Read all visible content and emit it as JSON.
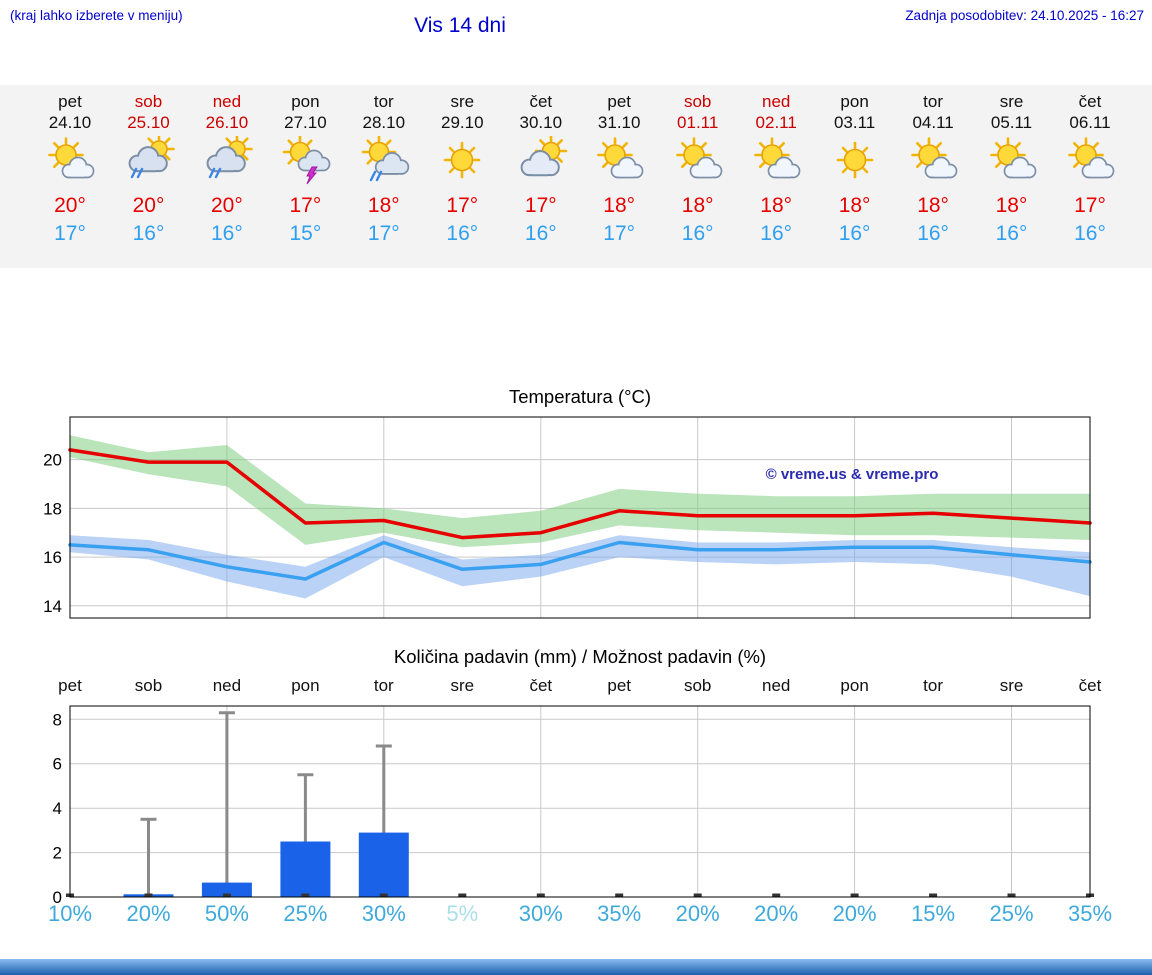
{
  "header": {
    "note": "(kraj lahko izberete v meniju)",
    "title": "Vis 14 dni",
    "updated": "Zadnja posodobitev: 24.10.2025 - 16:27"
  },
  "colors": {
    "link_blue": "#0000cc",
    "high_temp_red": "#e60000",
    "low_temp_blue": "#2f9ff0",
    "weekend_red": "#cc0000",
    "bar_blue": "#1a63e8",
    "whisker_gray": "#8a8a8a",
    "percent_blue": "#3fa9dc",
    "percent_muted": "#aadfe8",
    "watermark_blue": "#2b2bb0"
  },
  "forecast": {
    "days": [
      {
        "name": "pet",
        "date": "24.10",
        "weekend": false,
        "icon": "sun-cloud",
        "high": "20°",
        "low": "17°"
      },
      {
        "name": "sob",
        "date": "25.10",
        "weekend": true,
        "icon": "cloud-sun-rain",
        "high": "20°",
        "low": "16°"
      },
      {
        "name": "ned",
        "date": "26.10",
        "weekend": true,
        "icon": "cloud-sun-rain",
        "high": "20°",
        "low": "16°"
      },
      {
        "name": "pon",
        "date": "27.10",
        "weekend": false,
        "icon": "sun-cloud-storm",
        "high": "17°",
        "low": "15°"
      },
      {
        "name": "tor",
        "date": "28.10",
        "weekend": false,
        "icon": "sun-cloud-rain",
        "high": "18°",
        "low": "17°"
      },
      {
        "name": "sre",
        "date": "29.10",
        "weekend": false,
        "icon": "sun",
        "high": "17°",
        "low": "16°"
      },
      {
        "name": "čet",
        "date": "30.10",
        "weekend": false,
        "icon": "cloud-sun",
        "high": "17°",
        "low": "16°"
      },
      {
        "name": "pet",
        "date": "31.10",
        "weekend": false,
        "icon": "sun-cloud",
        "high": "18°",
        "low": "17°"
      },
      {
        "name": "sob",
        "date": "01.11",
        "weekend": true,
        "icon": "sun-cloud",
        "high": "18°",
        "low": "16°"
      },
      {
        "name": "ned",
        "date": "02.11",
        "weekend": true,
        "icon": "sun-cloud",
        "high": "18°",
        "low": "16°"
      },
      {
        "name": "pon",
        "date": "03.11",
        "weekend": false,
        "icon": "sun",
        "high": "18°",
        "low": "16°"
      },
      {
        "name": "tor",
        "date": "04.11",
        "weekend": false,
        "icon": "sun-cloud",
        "high": "18°",
        "low": "16°"
      },
      {
        "name": "sre",
        "date": "05.11",
        "weekend": false,
        "icon": "sun-cloud",
        "high": "18°",
        "low": "16°"
      },
      {
        "name": "čet",
        "date": "06.11",
        "weekend": false,
        "icon": "sun-cloud",
        "high": "17°",
        "low": "16°"
      }
    ]
  },
  "chart_data": [
    {
      "type": "line",
      "title": "Temperatura (°C)",
      "x_count": 14,
      "ylim": [
        13.5,
        21.75
      ],
      "yticks": [
        14,
        16,
        18,
        20
      ],
      "grid": true,
      "watermark": "© vreme.us & vreme.pro",
      "series": [
        {
          "name": "max-temp",
          "color": "#e60000",
          "values": [
            20.4,
            19.9,
            19.9,
            17.4,
            17.5,
            16.8,
            17.0,
            17.9,
            17.7,
            17.7,
            17.7,
            17.8,
            17.6,
            17.4
          ],
          "band": {
            "color": "rgba(130,205,130,0.55)",
            "upper": [
              21.0,
              20.3,
              20.6,
              18.2,
              18.0,
              17.6,
              17.9,
              18.8,
              18.6,
              18.5,
              18.5,
              18.6,
              18.6,
              18.6
            ],
            "lower": [
              20.1,
              19.4,
              18.9,
              16.5,
              17.0,
              16.4,
              16.6,
              17.3,
              17.1,
              17.0,
              16.9,
              16.9,
              16.8,
              16.7
            ]
          }
        },
        {
          "name": "min-temp",
          "color": "#3aa0f0",
          "values": [
            16.5,
            16.3,
            15.6,
            15.1,
            16.6,
            15.5,
            15.7,
            16.6,
            16.3,
            16.3,
            16.4,
            16.4,
            16.1,
            15.8
          ],
          "band": {
            "color": "rgba(120,165,240,0.5)",
            "upper": [
              16.9,
              16.7,
              16.1,
              15.6,
              16.9,
              15.9,
              16.1,
              16.9,
              16.6,
              16.6,
              16.7,
              16.7,
              16.4,
              16.2
            ],
            "lower": [
              16.2,
              15.9,
              15.0,
              14.3,
              16.0,
              14.8,
              15.2,
              16.0,
              15.8,
              15.7,
              15.8,
              15.7,
              15.2,
              14.4
            ]
          }
        }
      ]
    },
    {
      "type": "bar",
      "title": "Količina padavin (mm) / Možnost padavin (%)",
      "categories": [
        "pet",
        "sob",
        "ned",
        "pon",
        "tor",
        "sre",
        "čet",
        "pet",
        "sob",
        "ned",
        "pon",
        "tor",
        "sre",
        "čet"
      ],
      "values": [
        0,
        0.12,
        0.65,
        2.5,
        2.9,
        0,
        0,
        0,
        0,
        0,
        0,
        0,
        0,
        0
      ],
      "whiskers": [
        0,
        3.5,
        8.3,
        5.5,
        6.8,
        0,
        0,
        0,
        0,
        0,
        0,
        0,
        0,
        0
      ],
      "probabilities": [
        {
          "label": "10%"
        },
        {
          "label": "20%"
        },
        {
          "label": "50%"
        },
        {
          "label": "25%"
        },
        {
          "label": "30%"
        },
        {
          "label": "5%",
          "muted": true
        },
        {
          "label": "30%"
        },
        {
          "label": "35%"
        },
        {
          "label": "20%"
        },
        {
          "label": "20%"
        },
        {
          "label": "20%"
        },
        {
          "label": "15%"
        },
        {
          "label": "25%"
        },
        {
          "label": "35%"
        }
      ],
      "ylim": [
        0,
        8.6
      ],
      "yticks": [
        0,
        2,
        4,
        6,
        8
      ],
      "bar_color": "#1a63e8",
      "whisker_color": "#8a8a8a"
    }
  ]
}
